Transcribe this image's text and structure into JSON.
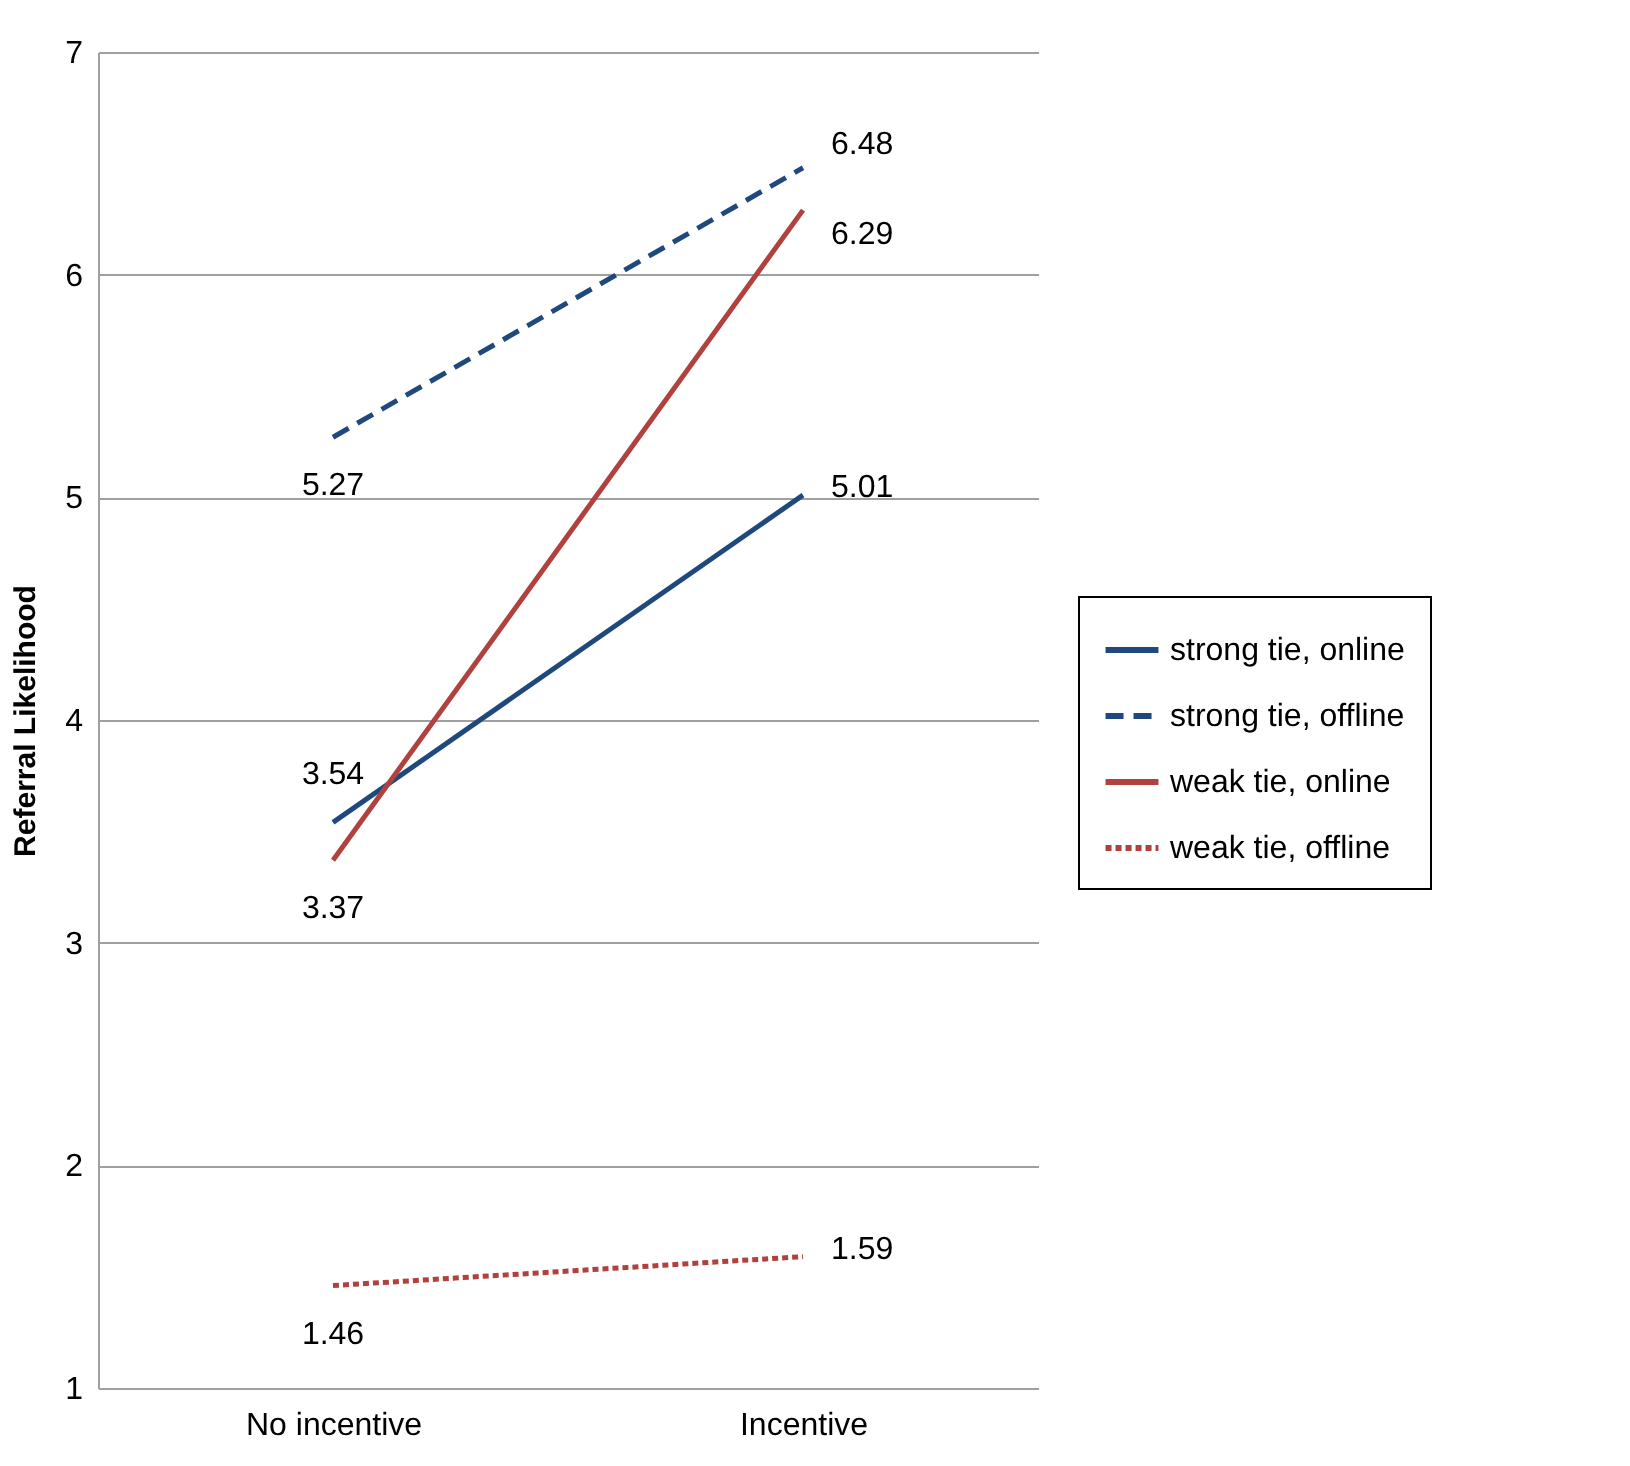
{
  "chart_data": {
    "type": "line",
    "ylabel": "Referral Likelihood",
    "categories": [
      "No incentive",
      "Incentive"
    ],
    "series": [
      {
        "name": "strong tie, online",
        "color": "#1f497d",
        "line_style": "solid",
        "values": [
          3.54,
          5.01
        ]
      },
      {
        "name": "strong tie, offline",
        "color": "#1f497d",
        "line_style": "dashed",
        "values": [
          5.27,
          6.48
        ]
      },
      {
        "name": "weak tie, online",
        "color": "#b0413e",
        "line_style": "solid",
        "values": [
          3.37,
          6.29
        ]
      },
      {
        "name": "weak tie, offline",
        "color": "#b0413e",
        "line_style": "dotted",
        "values": [
          1.46,
          1.59
        ]
      }
    ],
    "ylim": [
      1,
      7
    ],
    "yticks": [
      1,
      2,
      3,
      4,
      5,
      6,
      7
    ],
    "grid": "y",
    "legend": "right",
    "data_labels": true,
    "marker": "none"
  }
}
